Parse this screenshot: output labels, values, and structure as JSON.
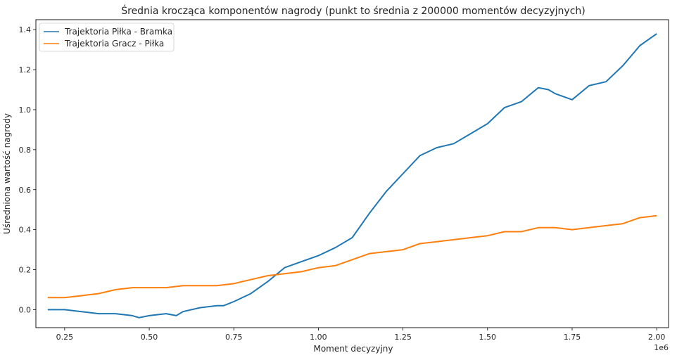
{
  "chart_data": {
    "type": "line",
    "title": "Średnia krocząca komponentów nagrody (punkt to średnia z 200000 momentów decyzyjnych)",
    "xlabel": "Moment decyzyjny",
    "ylabel": "Uśredniona wartość nagrody",
    "x_offset_label": "1e6",
    "xlim": [
      0.165,
      2.035
    ],
    "ylim": [
      -0.09,
      1.45
    ],
    "x_ticks": [
      0.25,
      0.5,
      0.75,
      1.0,
      1.25,
      1.5,
      1.75,
      2.0
    ],
    "x_tick_labels": [
      "0.25",
      "0.50",
      "0.75",
      "1.00",
      "1.25",
      "1.50",
      "1.75",
      "2.00"
    ],
    "y_ticks": [
      0.0,
      0.2,
      0.4,
      0.6,
      0.8,
      1.0,
      1.2,
      1.4
    ],
    "y_tick_labels": [
      "0.0",
      "0.2",
      "0.4",
      "0.6",
      "0.8",
      "1.0",
      "1.2",
      "1.4"
    ],
    "legend_position": "top-left",
    "series": [
      {
        "name": "Trajektoria Piłka - Bramka",
        "color": "#1f77b4",
        "x": [
          0.2,
          0.25,
          0.3,
          0.35,
          0.4,
          0.45,
          0.47,
          0.5,
          0.55,
          0.58,
          0.6,
          0.65,
          0.7,
          0.72,
          0.75,
          0.8,
          0.85,
          0.9,
          0.95,
          1.0,
          1.05,
          1.1,
          1.15,
          1.2,
          1.25,
          1.3,
          1.35,
          1.4,
          1.45,
          1.5,
          1.55,
          1.6,
          1.65,
          1.68,
          1.7,
          1.75,
          1.8,
          1.85,
          1.9,
          1.95,
          2.0
        ],
        "y": [
          0.0,
          0.0,
          -0.01,
          -0.02,
          -0.02,
          -0.03,
          -0.04,
          -0.03,
          -0.02,
          -0.03,
          -0.01,
          0.01,
          0.02,
          0.02,
          0.04,
          0.08,
          0.14,
          0.21,
          0.24,
          0.27,
          0.31,
          0.36,
          0.48,
          0.59,
          0.68,
          0.77,
          0.81,
          0.83,
          0.88,
          0.93,
          1.01,
          1.04,
          1.11,
          1.1,
          1.08,
          1.05,
          1.12,
          1.14,
          1.22,
          1.32,
          1.38
        ]
      },
      {
        "name": "Trajektoria Gracz - Piłka",
        "color": "#ff7f0e",
        "x": [
          0.2,
          0.25,
          0.3,
          0.35,
          0.4,
          0.45,
          0.5,
          0.55,
          0.6,
          0.65,
          0.7,
          0.75,
          0.8,
          0.85,
          0.9,
          0.95,
          1.0,
          1.05,
          1.1,
          1.15,
          1.2,
          1.25,
          1.3,
          1.35,
          1.4,
          1.45,
          1.5,
          1.55,
          1.6,
          1.65,
          1.7,
          1.75,
          1.8,
          1.85,
          1.9,
          1.95,
          2.0
        ],
        "y": [
          0.06,
          0.06,
          0.07,
          0.08,
          0.1,
          0.11,
          0.11,
          0.11,
          0.12,
          0.12,
          0.12,
          0.13,
          0.15,
          0.17,
          0.18,
          0.19,
          0.21,
          0.22,
          0.25,
          0.28,
          0.29,
          0.3,
          0.33,
          0.34,
          0.35,
          0.36,
          0.37,
          0.39,
          0.39,
          0.41,
          0.41,
          0.4,
          0.41,
          0.42,
          0.43,
          0.46,
          0.47
        ]
      }
    ]
  }
}
